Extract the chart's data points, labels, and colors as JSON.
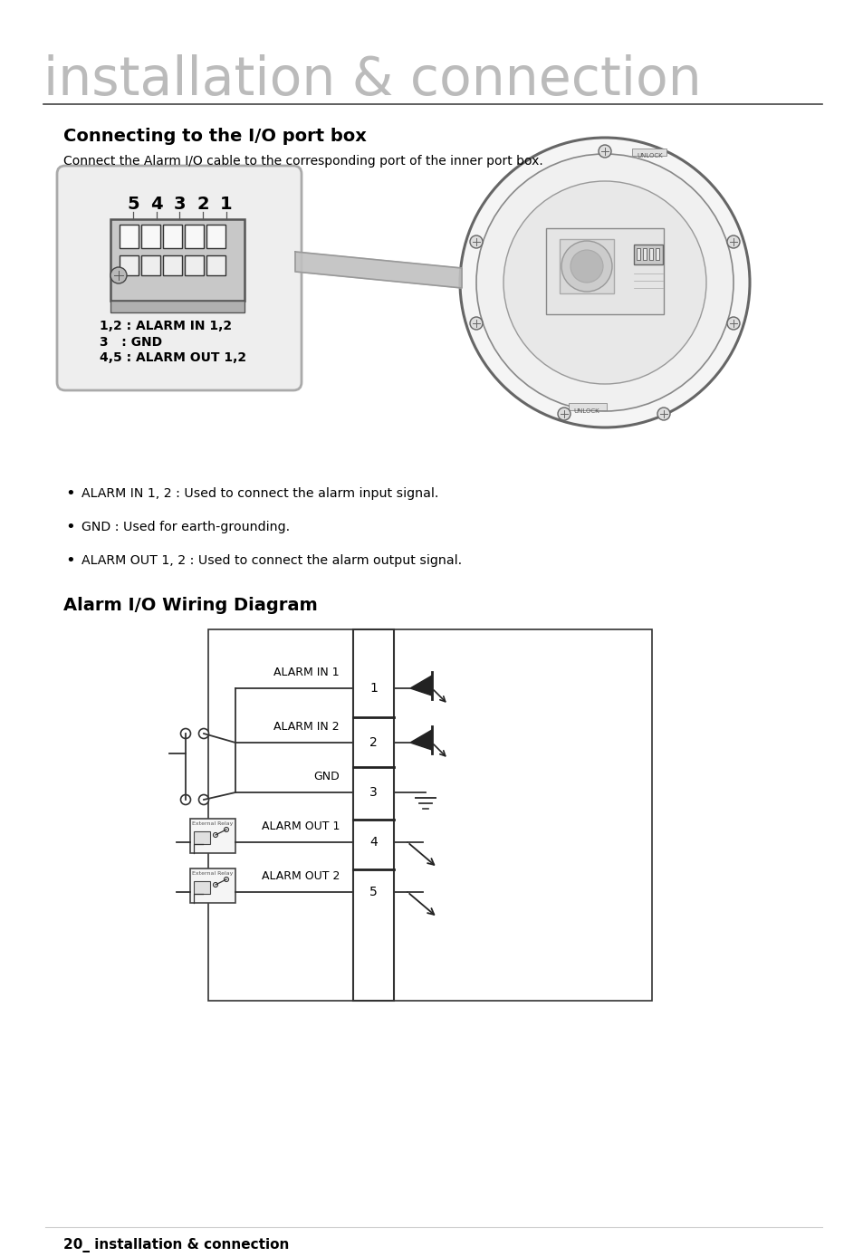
{
  "title": "installation & connection",
  "section1_title": "Connecting to the I/O port box",
  "section1_desc": "Connect the Alarm I/O cable to the corresponding port of the inner port box.",
  "port_labels": [
    "5",
    "4",
    "3",
    "2",
    "1"
  ],
  "port_legend": [
    "1,2 : ALARM IN 1,2",
    "3   : GND",
    "4,5 : ALARM OUT 1,2"
  ],
  "bullets": [
    "ALARM IN 1, 2 : Used to connect the alarm input signal.",
    "GND : Used for earth-grounding.",
    "ALARM OUT 1, 2 : Used to connect the alarm output signal."
  ],
  "section2_title": "Alarm I/O Wiring Diagram",
  "wiring_labels": [
    "ALARM IN 1",
    "ALARM IN 2",
    "GND",
    "ALARM OUT 1",
    "ALARM OUT 2"
  ],
  "wiring_numbers": [
    "1",
    "2",
    "3",
    "4",
    "5"
  ],
  "footer_text": "20_ installation & connection",
  "bg_color": "#ffffff",
  "text_color": "#000000",
  "title_color": "#bbbbbb",
  "line_color": "#333333",
  "gray_med": "#888888",
  "gray_light": "#cccccc",
  "gray_box": "#e8e8e8",
  "gray_dark": "#555555"
}
